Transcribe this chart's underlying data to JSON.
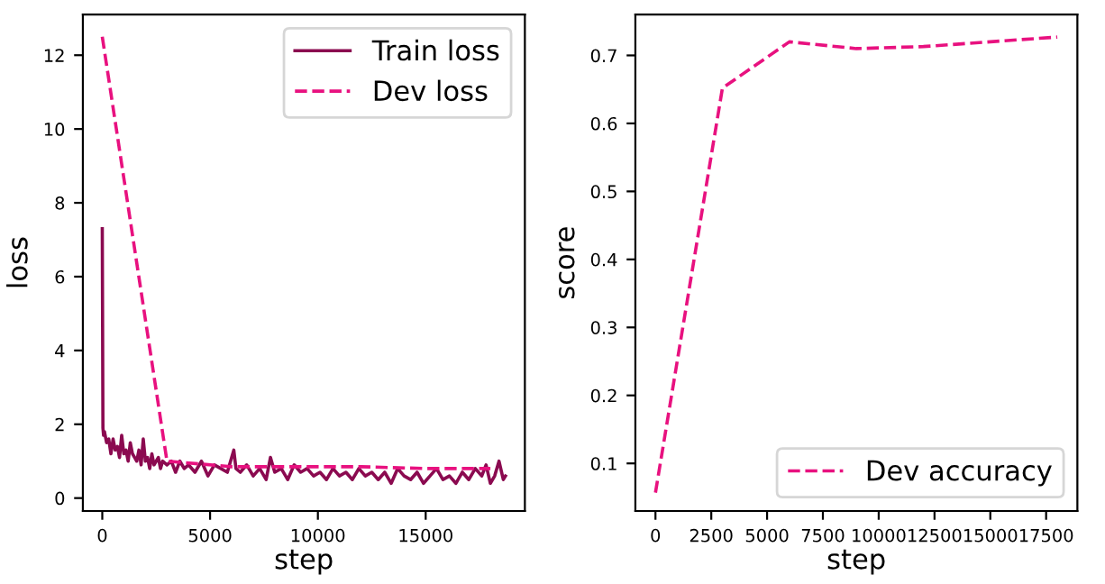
{
  "chart_data": [
    {
      "type": "line",
      "xlabel": "step",
      "ylabel": "loss",
      "xlim": [
        -900,
        19600
      ],
      "ylim": [
        -0.35,
        13.1
      ],
      "xticks": [
        0,
        5000,
        10000,
        15000
      ],
      "yticks": [
        0,
        2,
        4,
        6,
        8,
        10,
        12
      ],
      "grid": false,
      "legend": "top right",
      "series": [
        {
          "name": "Train loss",
          "color": "#8b0a50",
          "line_style": "solid",
          "x": [
            0,
            30,
            60,
            100,
            200,
            300,
            400,
            500,
            600,
            700,
            800,
            900,
            1000,
            1100,
            1200,
            1300,
            1400,
            1500,
            1600,
            1700,
            1800,
            1900,
            2000,
            2100,
            2200,
            2300,
            2400,
            2500,
            2600,
            2700,
            2800,
            3000,
            3200,
            3400,
            3600,
            3800,
            4000,
            4300,
            4600,
            4900,
            5200,
            5500,
            5800,
            6100,
            6200,
            6400,
            6700,
            7000,
            7300,
            7600,
            7800,
            8000,
            8300,
            8600,
            8900,
            9200,
            9500,
            9800,
            10100,
            10400,
            10700,
            11000,
            11300,
            11600,
            11900,
            12200,
            12500,
            12800,
            13100,
            13400,
            13700,
            14000,
            14300,
            14600,
            14900,
            15200,
            15500,
            15800,
            16100,
            16400,
            16700,
            17000,
            17300,
            17600,
            17800,
            18000,
            18200,
            18400,
            18600,
            18700
          ],
          "values": [
            7.3,
            1.9,
            1.7,
            1.8,
            1.5,
            1.6,
            1.2,
            1.6,
            1.3,
            1.4,
            1.1,
            1.7,
            1.2,
            1.3,
            1.0,
            1.5,
            1.2,
            1.1,
            1.0,
            1.3,
            0.9,
            1.6,
            1.0,
            1.1,
            0.8,
            1.2,
            0.9,
            1.0,
            1.1,
            0.8,
            1.0,
            0.9,
            1.0,
            0.7,
            1.0,
            0.8,
            0.9,
            0.7,
            1.0,
            0.6,
            0.9,
            0.8,
            0.7,
            1.3,
            0.8,
            0.7,
            0.9,
            0.6,
            0.8,
            0.5,
            1.1,
            0.7,
            0.8,
            0.5,
            0.9,
            0.7,
            0.8,
            0.6,
            0.7,
            0.5,
            0.8,
            0.6,
            0.7,
            0.5,
            0.8,
            0.6,
            0.7,
            0.5,
            0.7,
            0.4,
            0.8,
            0.6,
            0.5,
            0.7,
            0.4,
            0.6,
            0.8,
            0.5,
            0.6,
            0.4,
            0.7,
            0.5,
            0.8,
            0.6,
            0.9,
            0.4,
            0.6,
            1.0,
            0.5,
            0.6
          ]
        },
        {
          "name": "Dev loss",
          "color": "#e8117f",
          "line_style": "dashed",
          "x": [
            0,
            3000,
            6000,
            9000,
            12000,
            15000,
            18000
          ],
          "values": [
            12.5,
            1.0,
            0.85,
            0.85,
            0.85,
            0.8,
            0.8
          ]
        }
      ]
    },
    {
      "type": "line",
      "xlabel": "step",
      "ylabel": "score",
      "xlim": [
        -900,
        18900
      ],
      "ylim": [
        0.03,
        0.76
      ],
      "xticks": [
        0,
        2500,
        5000,
        7500,
        10000,
        12500,
        15000,
        17500
      ],
      "yticks": [
        0.1,
        0.2,
        0.3,
        0.4,
        0.5,
        0.6,
        0.7
      ],
      "grid": false,
      "legend": "bottom right",
      "series": [
        {
          "name": "Dev accuracy",
          "color": "#e8117f",
          "line_style": "dashed",
          "x": [
            0,
            3000,
            6000,
            9000,
            12000,
            15000,
            18000
          ],
          "values": [
            0.057,
            0.652,
            0.72,
            0.71,
            0.713,
            0.72,
            0.727
          ]
        }
      ]
    }
  ]
}
